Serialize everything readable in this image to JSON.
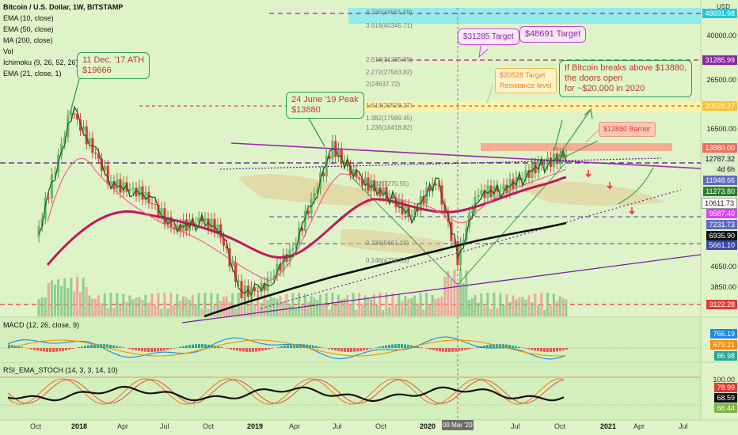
{
  "header": {
    "title": "Bitcoin / U.S. Dollar, 1W, BITSTAMP",
    "indicators": [
      "EMA (10, close)",
      "EMA (50, close)",
      "MA (200, close)",
      "Vol",
      "Ichimoku (9, 26, 52, 26)",
      "EMA (21, close, 1)"
    ],
    "currency": "USD"
  },
  "panels": {
    "macd_label": "MACD (12, 26, close, 9)",
    "rsi_label": "RSI_EMA_STOCH (14, 3, 3, 14, 10)"
  },
  "callouts": {
    "ath": "11 Dec. '17 ATH\n$19666",
    "peak": "24 June '19 Peak\n$13880",
    "target_31285": "$31285 Target",
    "target_48691": "$48691 Target",
    "target_20528": "$20528 Target\nResistance level",
    "breakout": "If Bitcoin breaks above $13880,\nthe doors open\nfor ~$20,000 in 2020",
    "barrier": "$13880 Barrier"
  },
  "fib_labels": [
    "4.236(48691.98)",
    "3.618(40345.71)",
    "2.618(31285.99)",
    "2.272(27563.82)",
    "2(24637.72)",
    "1.618(20528.27)",
    "1.382(17989.45)",
    "1.236(16418.82)",
    "0.382(7270.55)",
    "0.236(5661.10)",
    "0.146(4734.55)"
  ],
  "price_axis": [
    "40000.00",
    "26500.00",
    "16500.00",
    "4650.00",
    "3850.00"
  ],
  "price_tags": [
    {
      "text": "48691.98",
      "color": "#26c6da"
    },
    {
      "text": "31285.99",
      "color": "#8e24aa"
    },
    {
      "text": "20528.27",
      "color": "#fbc02d"
    },
    {
      "text": "13880.00",
      "color": "#ef6c5a"
    },
    {
      "text": "12787.32",
      "color": "#d6ecc6"
    },
    {
      "text": "4d 6h",
      "color": "#d6ecc6"
    },
    {
      "text": "11948.66",
      "color": "#5c6bc0"
    },
    {
      "text": "11273.80",
      "color": "#2e7d32"
    },
    {
      "text": "10611.73",
      "color": "#ffffff"
    },
    {
      "text": "9587.40",
      "color": "#e040fb"
    },
    {
      "text": "7231.73",
      "color": "#5c6bc0"
    },
    {
      "text": "6935.90",
      "color": "#111111"
    },
    {
      "text": "5661.10",
      "color": "#3949ab"
    },
    {
      "text": "3122.28",
      "color": "#e53935"
    }
  ],
  "macd_tags": [
    {
      "text": "766.19",
      "color": "#1e88e5"
    },
    {
      "text": "679.21",
      "color": "#fb8c00"
    },
    {
      "text": "86.98",
      "color": "#26a69a"
    }
  ],
  "rsi_tags": [
    {
      "text": "100.00",
      "color": "none"
    },
    {
      "text": "78.99",
      "color": "#e53935"
    },
    {
      "text": "68.59",
      "color": "#111111"
    },
    {
      "text": "66.44",
      "color": "#7cb342"
    }
  ],
  "time_axis": [
    "Oct",
    "2018",
    "Apr",
    "Jul",
    "Oct",
    "2019",
    "Apr",
    "Jul",
    "Oct",
    "2020",
    "09 Mar '20",
    "Jul",
    "Oct",
    "2021",
    "Apr",
    "Jul"
  ],
  "chart_data": {
    "type": "line",
    "title": "Bitcoin / U.S. Dollar, 1W, BITSTAMP",
    "y_scale": "log",
    "ylim": [
      3122,
      48692
    ],
    "x": [
      "2017-10",
      "2017-12",
      "2018-02",
      "2018-04",
      "2018-06",
      "2018-08",
      "2018-10",
      "2018-12",
      "2019-02",
      "2019-04",
      "2019-06",
      "2019-08",
      "2019-10",
      "2019-12",
      "2020-02",
      "2020-03",
      "2020-04",
      "2020-06",
      "2020-08",
      "2020-10"
    ],
    "series": [
      {
        "values": [
          5800,
          19666,
          9800,
          8900,
          6400,
          6900,
          6400,
          3500,
          3600,
          5300,
          13880,
          10200,
          9200,
          7200,
          10200,
          4800,
          8800,
          9400,
          11600,
          12787
        ]
      }
    ],
    "levels": [
      48691.98,
      31285.99,
      20528.27,
      13880.0,
      12787.32,
      11948.66,
      11273.8,
      10611.73,
      9587.4,
      7231.73,
      6935.9,
      5661.1,
      3122.28
    ]
  }
}
